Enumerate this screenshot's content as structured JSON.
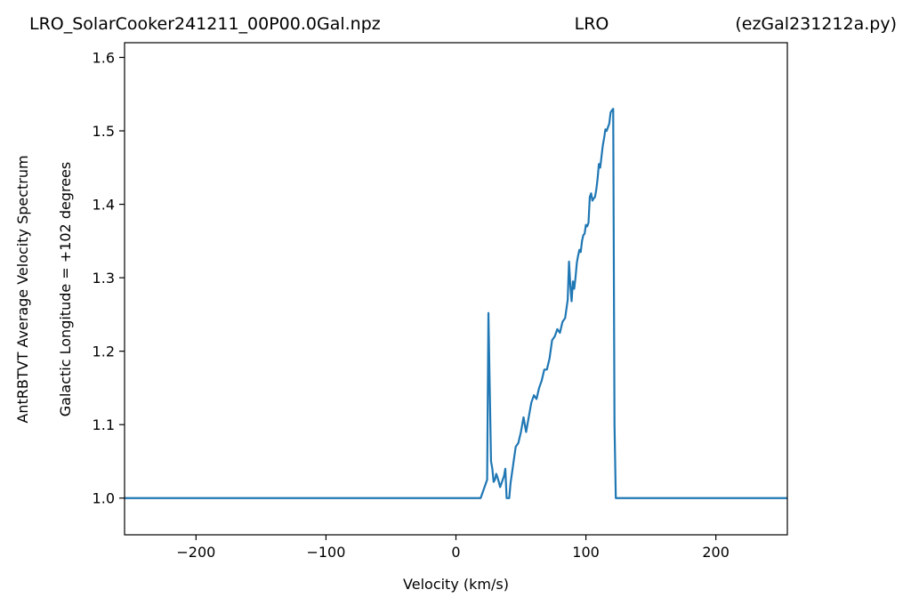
{
  "titles": {
    "left": "LRO_SolarCooker241211_00P00.0Gal.npz",
    "center": "LRO",
    "right": "(ezGal231212a.py)"
  },
  "chart_data": {
    "type": "line",
    "xlabel": "Velocity (km/s)",
    "ylabel_outer": "AntRBTVT Average Velocity Spectrum",
    "ylabel_inner": "Galactic Longitude = +102 degrees",
    "xlim": [
      -255,
      255
    ],
    "ylim": [
      0.95,
      1.62
    ],
    "xticks": [
      -200,
      -100,
      0,
      100,
      200
    ],
    "xtick_labels": [
      "−200",
      "−100",
      "0",
      "100",
      "200"
    ],
    "yticks": [
      1.0,
      1.1,
      1.2,
      1.3,
      1.4,
      1.5,
      1.6
    ],
    "ytick_labels": [
      "1.0",
      "1.1",
      "1.2",
      "1.3",
      "1.4",
      "1.5",
      "1.6"
    ],
    "grid": false,
    "line_color": "#1f77b4",
    "series": [
      {
        "x": [
          -255,
          19,
          23,
          24,
          25,
          26,
          27,
          28,
          29,
          30,
          31,
          32,
          33,
          34,
          35,
          36,
          37,
          38,
          39,
          40,
          41,
          42,
          44,
          46,
          48,
          50,
          52,
          54,
          56,
          58,
          60,
          62,
          64,
          66,
          68,
          70,
          72,
          74,
          76,
          78,
          80,
          82,
          84,
          86,
          87,
          88,
          89,
          90,
          91,
          92,
          93,
          94,
          95,
          96,
          97,
          98,
          99,
          100,
          101,
          102,
          103,
          104,
          105,
          106,
          107,
          108,
          109,
          110,
          111,
          112,
          113,
          114,
          115,
          116,
          117,
          118,
          119,
          120,
          121,
          122,
          123,
          124,
          125,
          126,
          127,
          128,
          129,
          130,
          131,
          255
        ],
        "y": [
          1.0,
          1.0,
          1.02,
          1.025,
          1.252,
          1.15,
          1.05,
          1.04,
          1.022,
          1.025,
          1.033,
          1.028,
          1.022,
          1.015,
          1.02,
          1.025,
          1.03,
          1.04,
          1.0,
          1.0,
          1.0,
          1.02,
          1.045,
          1.07,
          1.075,
          1.09,
          1.11,
          1.09,
          1.11,
          1.13,
          1.14,
          1.135,
          1.15,
          1.16,
          1.175,
          1.175,
          1.19,
          1.215,
          1.22,
          1.23,
          1.225,
          1.24,
          1.245,
          1.27,
          1.322,
          1.29,
          1.268,
          1.295,
          1.285,
          1.3,
          1.32,
          1.33,
          1.338,
          1.335,
          1.35,
          1.358,
          1.36,
          1.372,
          1.37,
          1.375,
          1.41,
          1.415,
          1.405,
          1.408,
          1.41,
          1.42,
          1.435,
          1.455,
          1.45,
          1.465,
          1.48,
          1.49,
          1.502,
          1.5,
          1.505,
          1.51,
          1.525,
          1.528,
          1.53,
          1.1,
          1.0,
          1.0,
          1.0,
          1.0,
          1.0,
          1.0,
          1.0,
          1.0,
          1.0,
          1.0
        ]
      }
    ]
  }
}
